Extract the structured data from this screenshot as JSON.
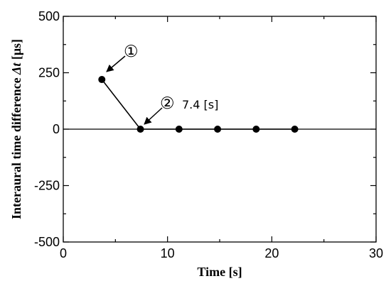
{
  "chart_data": {
    "type": "line",
    "x_label": "Time [s]",
    "y_label_prefix": "Interaural time difference ",
    "y_label_var": "Δt",
    "y_label_suffix": " [μs]",
    "xlim": [
      0,
      30
    ],
    "ylim": [
      -500,
      500
    ],
    "x_ticks": [
      0,
      10,
      20,
      30
    ],
    "y_ticks": [
      -500,
      -250,
      0,
      250,
      500
    ],
    "zero_line": true,
    "grid": false,
    "series": [
      {
        "x": [
          3.7,
          7.4,
          11.1,
          14.8,
          18.5,
          22.2
        ],
        "y": [
          220,
          0,
          0,
          0,
          0,
          0
        ]
      }
    ],
    "annotations": [
      {
        "marker": "①",
        "text": "",
        "point_index": 0
      },
      {
        "marker": "②",
        "text": "7.4 [s]",
        "point_index": 1
      }
    ]
  }
}
